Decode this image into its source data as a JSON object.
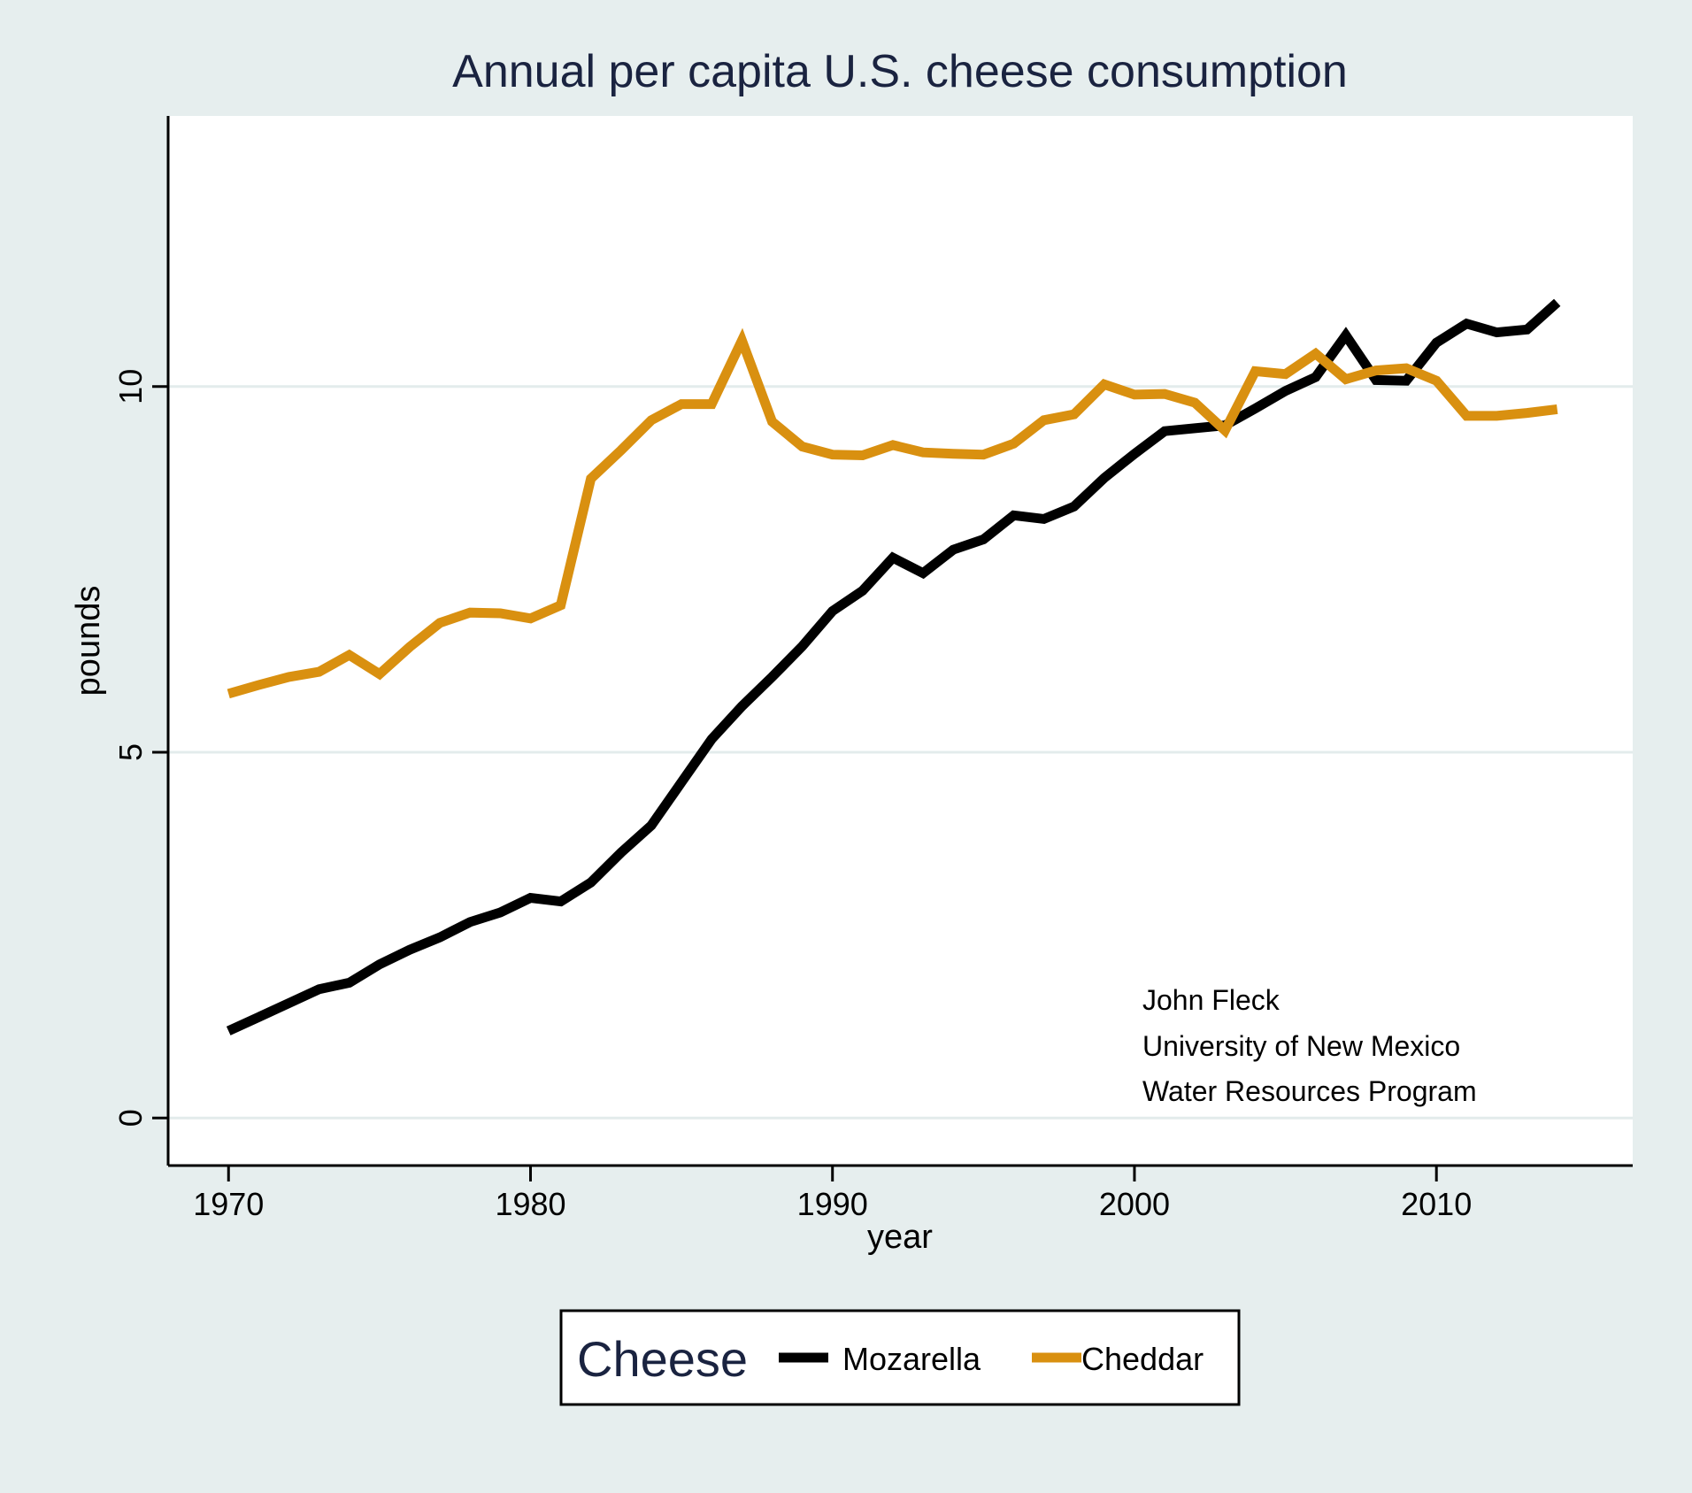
{
  "chart_data": {
    "type": "line",
    "title": "Annual per capita U.S. cheese consumption",
    "xlabel": "year",
    "ylabel": "pounds",
    "xlim": [
      1968,
      2016.5
    ],
    "ylim": [
      -0.65,
      13.7
    ],
    "x_ticks": [
      1970,
      1980,
      1990,
      2000,
      2010
    ],
    "y_ticks": [
      0,
      5,
      10
    ],
    "grid": true,
    "x": [
      1970,
      1971,
      1972,
      1973,
      1974,
      1975,
      1976,
      1977,
      1978,
      1979,
      1980,
      1981,
      1982,
      1983,
      1984,
      1985,
      1986,
      1987,
      1988,
      1989,
      1990,
      1991,
      1992,
      1993,
      1994,
      1995,
      1996,
      1997,
      1998,
      1999,
      2000,
      2001,
      2002,
      2003,
      2004,
      2005,
      2006,
      2007,
      2008,
      2009,
      2010,
      2011,
      2012,
      2013,
      2014
    ],
    "series": [
      {
        "name": "Mozarella",
        "color": "#000000",
        "values": [
          1.19,
          1.38,
          1.57,
          1.76,
          1.85,
          2.1,
          2.3,
          2.47,
          2.68,
          2.81,
          3.01,
          2.96,
          3.22,
          3.63,
          4.0,
          4.59,
          5.18,
          5.63,
          6.03,
          6.45,
          6.93,
          7.21,
          7.66,
          7.45,
          7.77,
          7.91,
          8.24,
          8.19,
          8.36,
          8.75,
          9.08,
          9.39,
          9.43,
          9.47,
          9.7,
          9.94,
          10.13,
          10.7,
          10.09,
          10.08,
          10.6,
          10.86,
          10.74,
          10.78,
          11.15
        ]
      },
      {
        "name": "Cheddar",
        "color": "#d99010",
        "values": [
          5.8,
          5.92,
          6.03,
          6.1,
          6.33,
          6.07,
          6.44,
          6.77,
          6.91,
          6.9,
          6.83,
          7.01,
          8.74,
          9.13,
          9.54,
          9.76,
          9.76,
          10.63,
          9.52,
          9.18,
          9.07,
          9.06,
          9.2,
          9.1,
          9.08,
          9.07,
          9.22,
          9.54,
          9.62,
          10.03,
          9.89,
          9.9,
          9.78,
          9.4,
          10.21,
          10.17,
          10.45,
          10.1,
          10.22,
          10.25,
          10.08,
          9.6,
          9.6,
          9.64,
          9.69
        ]
      }
    ],
    "legend": {
      "title": "Cheese",
      "position": "bottom",
      "entries": [
        "Mozarella",
        "Cheddar"
      ]
    },
    "annotations": [
      "John Fleck",
      "University of New Mexico",
      "Water Resources Program"
    ]
  }
}
